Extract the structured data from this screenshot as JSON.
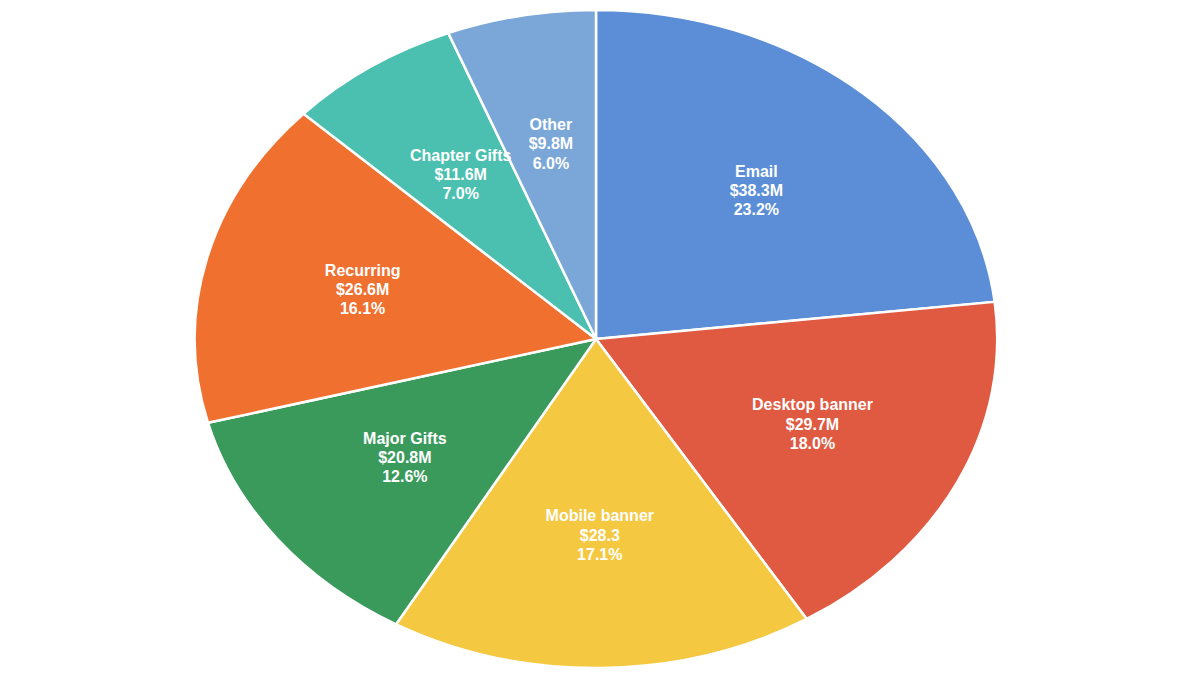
{
  "chart_data": {
    "type": "pie",
    "categories": [
      "Email",
      "Desktop banner",
      "Mobile banner",
      "Major Gifts",
      "Recurring",
      "Chapter Gifts",
      "Other"
    ],
    "values": [
      23.2,
      18.0,
      17.1,
      12.6,
      16.1,
      7.0,
      6.0
    ],
    "value_labels": [
      "23.2%",
      "18.0%",
      "17.1%",
      "12.6%",
      "16.1%",
      "7.0%",
      "6.0%"
    ],
    "amounts": [
      38.3,
      29.7,
      28.3,
      20.8,
      26.6,
      11.6,
      9.8
    ],
    "amount_labels": [
      "$38.3M",
      "$29.7M",
      "$28.3",
      "$20.8M",
      "$26.6M",
      "$11.6M",
      "$9.8M"
    ],
    "colors": [
      "#5B8ED6",
      "#E05A42",
      "#F5C842",
      "#3A9A5C",
      "#F07030",
      "#4BBFB0",
      "#7BA7D8"
    ],
    "data_labels": true
  }
}
